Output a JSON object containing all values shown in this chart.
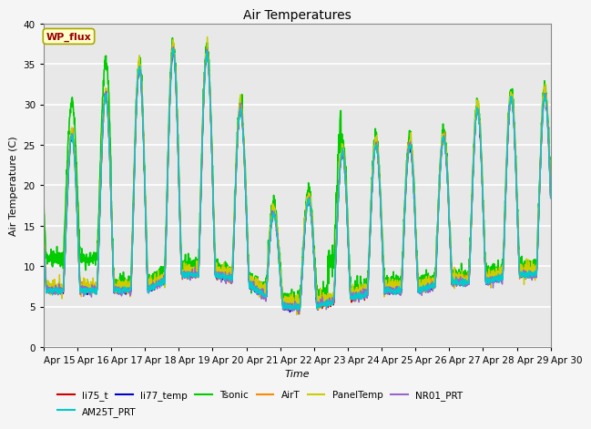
{
  "title": "Air Temperatures",
  "xlabel": "Time",
  "ylabel": "Air Temperature (C)",
  "ylim": [
    0,
    40
  ],
  "background_color": "#e8e8e8",
  "grid_color": "white",
  "series_order": [
    "li75_t",
    "li77_temp",
    "Tsonic",
    "AirT",
    "PanelTemp",
    "NR01_PRT",
    "AM25T_PRT"
  ],
  "series": {
    "li75_t": {
      "color": "#cc0000",
      "lw": 1.0
    },
    "li77_temp": {
      "color": "#0000cc",
      "lw": 1.0
    },
    "Tsonic": {
      "color": "#00cc00",
      "lw": 1.2
    },
    "AirT": {
      "color": "#ff8800",
      "lw": 1.0
    },
    "PanelTemp": {
      "color": "#cccc00",
      "lw": 1.0
    },
    "NR01_PRT": {
      "color": "#9966cc",
      "lw": 1.0
    },
    "AM25T_PRT": {
      "color": "#00cccc",
      "lw": 1.0
    }
  },
  "legend_label": "WP_flux",
  "x_tick_labels": [
    "Apr 15",
    "Apr 16",
    "Apr 17",
    "Apr 18",
    "Apr 19",
    "Apr 20",
    "Apr 21",
    "Apr 22",
    "Apr 23",
    "Apr 24",
    "Apr 25",
    "Apr 26",
    "Apr 27",
    "Apr 28",
    "Apr 29",
    "Apr 30"
  ],
  "legend_rows": [
    [
      "li75_t",
      "li77_temp",
      "Tsonic",
      "AirT",
      "PanelTemp",
      "NR01_PRT"
    ],
    [
      "AM25T_PRT"
    ]
  ]
}
